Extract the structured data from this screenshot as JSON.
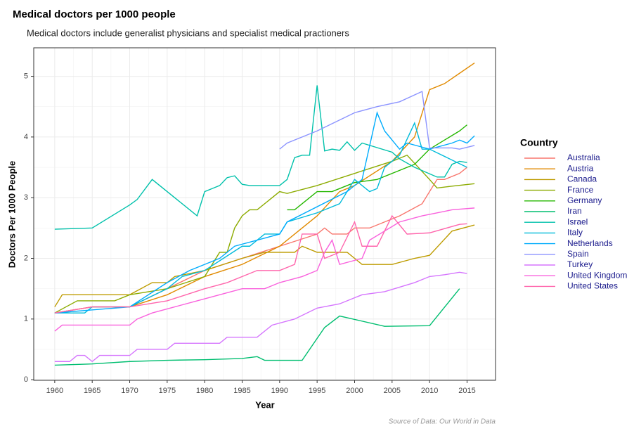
{
  "chart_data": {
    "type": "line",
    "title": "Medical doctors per 1000 people",
    "subtitle": "Medical doctors include generalist physicians and specialist medical practioners",
    "x_label": "Year",
    "y_label": "Doctors Per 1000 People",
    "legend_title": "Country",
    "legend_position": "right",
    "source": "Source of Data: Our World in Data",
    "grid": true,
    "xlim": [
      1957.2,
      2018.8
    ],
    "ylim": [
      -0.01,
      5.47
    ],
    "xticks": [
      1960,
      1965,
      1970,
      1975,
      1980,
      1985,
      1990,
      1995,
      2000,
      2005,
      2010,
      2015
    ],
    "yticks": [
      0,
      1,
      2,
      3,
      4,
      5
    ],
    "series": [
      {
        "name": "Australia",
        "color": "#F8766D",
        "x": [
          1960,
          1965,
          1970,
          1975,
          1980,
          1985,
          1990,
          1995,
          1996,
          1997,
          1999,
          2000,
          2002,
          2004,
          2006,
          2009,
          2011,
          2012,
          2014,
          2015
        ],
        "values": [
          1.1,
          1.2,
          1.2,
          1.5,
          1.8,
          2.0,
          2.2,
          2.4,
          2.5,
          2.4,
          2.4,
          2.5,
          2.5,
          2.6,
          2.7,
          2.9,
          3.3,
          3.3,
          3.4,
          3.5
        ]
      },
      {
        "name": "Austria",
        "color": "#E18A00",
        "x": [
          1960,
          1965,
          1970,
          1975,
          1980,
          1985,
          1990,
          1995,
          1998,
          2000,
          2005,
          2008,
          2010,
          2012,
          2014,
          2016
        ],
        "values": [
          1.1,
          1.2,
          1.2,
          1.4,
          1.7,
          1.9,
          2.2,
          2.7,
          3.1,
          3.2,
          3.6,
          4.0,
          4.78,
          4.88,
          5.05,
          5.22
        ]
      },
      {
        "name": "Canada",
        "color": "#BE9C00",
        "x": [
          1960,
          1961,
          1970,
          1973,
          1975,
          1976,
          1980,
          1985,
          1988,
          1992,
          1993,
          1995,
          1999,
          2000,
          2001,
          2005,
          2008,
          2010,
          2013,
          2016
        ],
        "values": [
          1.2,
          1.4,
          1.4,
          1.6,
          1.6,
          1.7,
          1.8,
          2.0,
          2.1,
          2.1,
          2.2,
          2.1,
          2.1,
          2.0,
          1.9,
          1.9,
          2.0,
          2.05,
          2.45,
          2.55
        ]
      },
      {
        "name": "France",
        "color": "#8CAB00",
        "x": [
          1960,
          1963,
          1968,
          1970,
          1975,
          1980,
          1982,
          1983,
          1984,
          1985,
          1986,
          1987,
          1990,
          1991,
          1995,
          2000,
          2005,
          2007,
          2010,
          2011,
          2013,
          2016
        ],
        "values": [
          1.1,
          1.3,
          1.3,
          1.4,
          1.5,
          1.7,
          2.1,
          2.1,
          2.5,
          2.7,
          2.8,
          2.8,
          3.1,
          3.07,
          3.2,
          3.4,
          3.6,
          3.7,
          3.3,
          3.16,
          3.19,
          3.23
        ]
      },
      {
        "name": "Germany",
        "color": "#24B700",
        "x": [
          1991,
          1992,
          1995,
          1997,
          1999,
          2000,
          2003,
          2006,
          2008,
          2010,
          2012,
          2014,
          2015
        ],
        "values": [
          2.8,
          2.8,
          3.1,
          3.1,
          3.2,
          3.25,
          3.3,
          3.45,
          3.55,
          3.8,
          3.95,
          4.1,
          4.2
        ]
      },
      {
        "name": "Iran",
        "color": "#00BE70",
        "x": [
          1960,
          1965,
          1970,
          1975,
          1980,
          1985,
          1987,
          1988,
          1993,
          1996,
          1998,
          2004,
          2010,
          2014
        ],
        "values": [
          0.24,
          0.26,
          0.3,
          0.32,
          0.33,
          0.35,
          0.38,
          0.32,
          0.32,
          0.86,
          1.05,
          0.88,
          0.89,
          1.5
        ]
      },
      {
        "name": "Israel",
        "color": "#00C1AB",
        "x": [
          1960,
          1965,
          1970,
          1971,
          1973,
          1979,
          1980,
          1981,
          1982,
          1983,
          1984,
          1985,
          1986,
          1990,
          1991,
          1992,
          1993,
          1994,
          1995,
          1996,
          1997,
          1998,
          1999,
          2000,
          2001,
          2005,
          2006,
          2008,
          2011,
          2012,
          2013,
          2014,
          2015
        ],
        "values": [
          2.48,
          2.5,
          2.88,
          2.97,
          3.3,
          2.7,
          3.1,
          3.15,
          3.2,
          3.33,
          3.36,
          3.22,
          3.2,
          3.2,
          3.3,
          3.66,
          3.7,
          3.7,
          4.85,
          3.77,
          3.8,
          3.78,
          3.92,
          3.78,
          3.9,
          3.75,
          3.64,
          3.5,
          3.34,
          3.34,
          3.55,
          3.6,
          3.58
        ]
      },
      {
        "name": "Italy",
        "color": "#00BBDA",
        "x": [
          1960,
          1964,
          1965,
          1970,
          1975,
          1977,
          1980,
          1985,
          1986,
          1988,
          1990,
          1991,
          1995,
          1998,
          2000,
          2002,
          2003,
          2004,
          2006,
          2008,
          2009,
          2010,
          2015
        ],
        "values": [
          1.1,
          1.1,
          1.2,
          1.2,
          1.5,
          1.7,
          1.8,
          2.2,
          2.2,
          2.4,
          2.4,
          2.6,
          2.75,
          2.9,
          3.3,
          3.1,
          3.15,
          3.5,
          3.7,
          4.23,
          3.8,
          3.8,
          3.5
        ]
      },
      {
        "name": "Netherlands",
        "color": "#00ACFC",
        "x": [
          1960,
          1970,
          1975,
          1978,
          1980,
          1982,
          1984,
          1990,
          1991,
          1999,
          2001,
          2003,
          2004,
          2006,
          2007,
          2010,
          2013,
          2014,
          2015,
          2016
        ],
        "values": [
          1.1,
          1.2,
          1.6,
          1.8,
          1.9,
          2.0,
          2.2,
          2.4,
          2.6,
          3.1,
          3.3,
          4.4,
          4.1,
          3.8,
          3.9,
          3.8,
          3.9,
          3.95,
          3.9,
          4.02
        ]
      },
      {
        "name": "Spain",
        "color": "#8B93FF",
        "x": [
          1990,
          1991,
          1995,
          2000,
          2003,
          2006,
          2009,
          2010,
          2013,
          2014,
          2016
        ],
        "values": [
          3.8,
          3.9,
          4.1,
          4.4,
          4.5,
          4.58,
          4.75,
          3.82,
          3.82,
          3.8,
          3.86
        ]
      },
      {
        "name": "Turkey",
        "color": "#D575FE",
        "x": [
          1960,
          1962,
          1963,
          1964,
          1965,
          1966,
          1970,
          1971,
          1975,
          1976,
          1982,
          1983,
          1987,
          1989,
          1992,
          1995,
          1998,
          2001,
          2004,
          2008,
          2010,
          2012,
          2014,
          2015
        ],
        "values": [
          0.3,
          0.3,
          0.4,
          0.4,
          0.3,
          0.4,
          0.4,
          0.5,
          0.5,
          0.6,
          0.6,
          0.7,
          0.7,
          0.9,
          1.0,
          1.18,
          1.25,
          1.4,
          1.45,
          1.6,
          1.7,
          1.73,
          1.77,
          1.75
        ]
      },
      {
        "name": "United Kingdom",
        "color": "#F962DD",
        "x": [
          1960,
          1961,
          1970,
          1971,
          1973,
          1976,
          1979,
          1982,
          1985,
          1988,
          1990,
          1993,
          1995,
          1996,
          1997,
          1998,
          2001,
          2002,
          2006,
          2009,
          2011,
          2013,
          2016
        ],
        "values": [
          0.8,
          0.9,
          0.9,
          1.0,
          1.1,
          1.2,
          1.3,
          1.4,
          1.5,
          1.5,
          1.6,
          1.7,
          1.8,
          2.1,
          2.3,
          1.9,
          2.0,
          2.3,
          2.6,
          2.7,
          2.75,
          2.8,
          2.83
        ]
      },
      {
        "name": "United States",
        "color": "#FF65AC",
        "x": [
          1960,
          1965,
          1970,
          1975,
          1980,
          1983,
          1987,
          1990,
          1992,
          1993,
          1995,
          1996,
          1998,
          2000,
          2001,
          2003,
          2005,
          2007,
          2010,
          2014,
          2015
        ],
        "values": [
          1.1,
          1.2,
          1.2,
          1.3,
          1.5,
          1.6,
          1.8,
          1.8,
          1.9,
          2.4,
          2.4,
          2.0,
          2.1,
          2.6,
          2.2,
          2.2,
          2.7,
          2.4,
          2.42,
          2.56,
          2.57
        ]
      }
    ]
  }
}
